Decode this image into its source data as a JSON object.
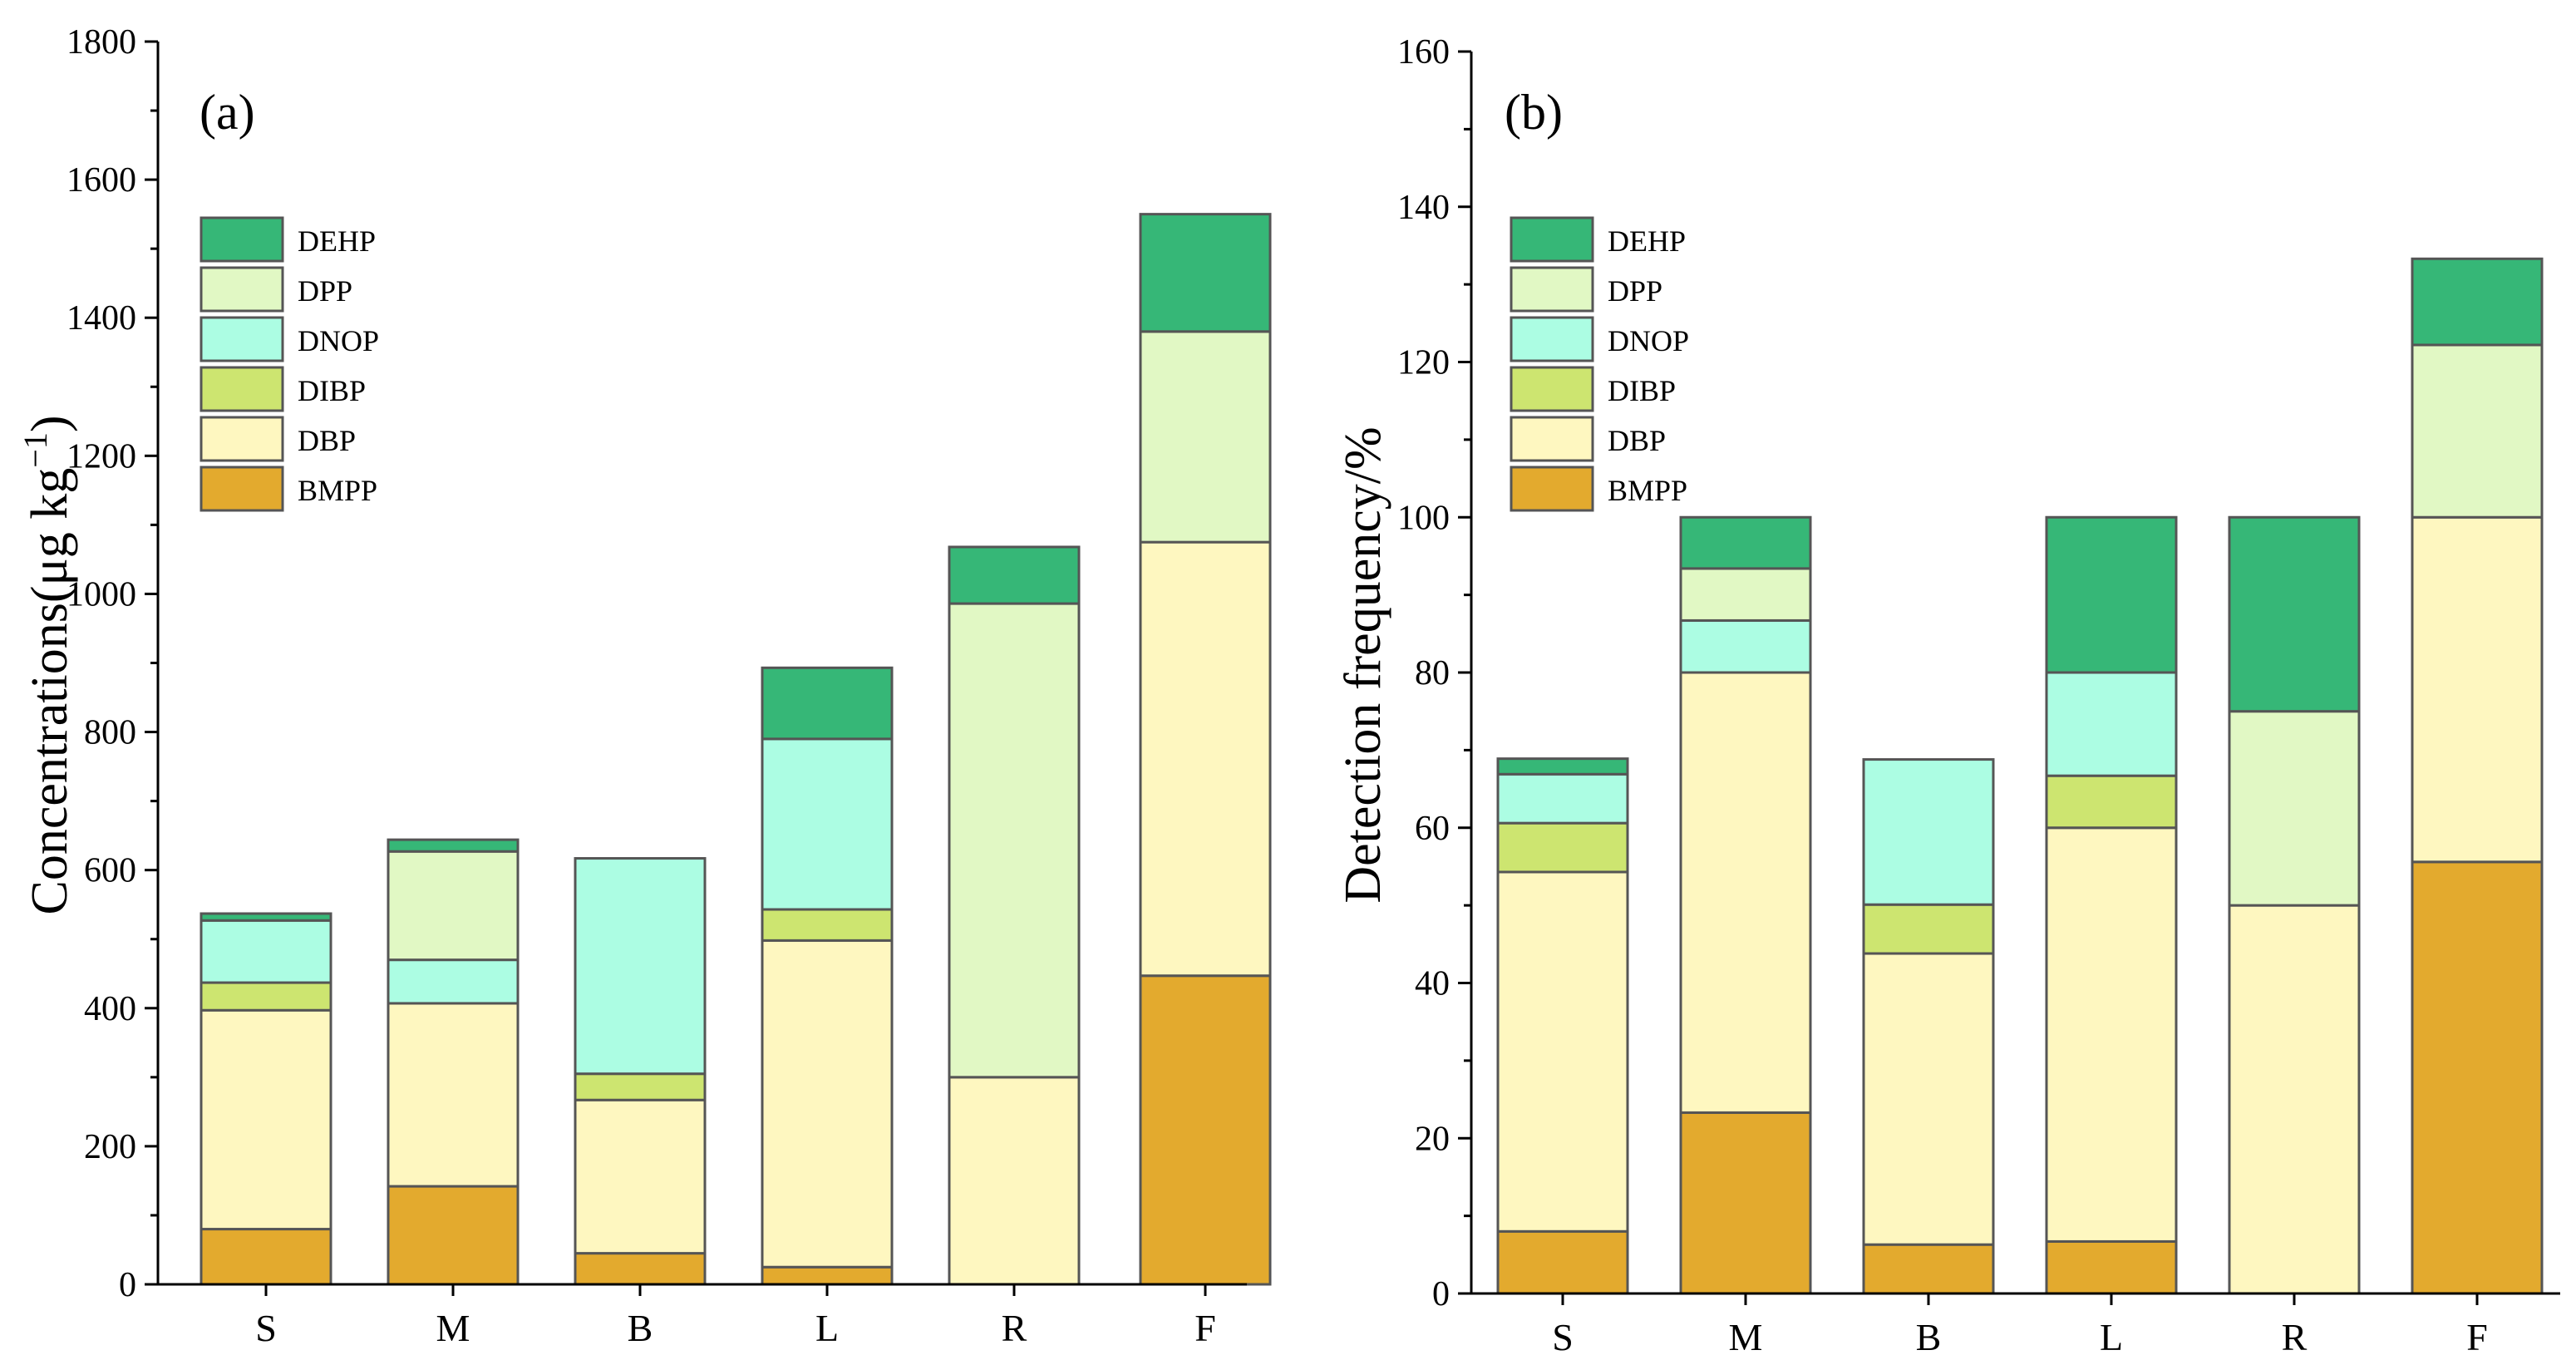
{
  "chart_data": [
    {
      "type": "bar",
      "stacked": true,
      "panel_label": "(a)",
      "title": "",
      "xlabel": "",
      "ylabel_main": "Concentrations(μg kg",
      "ylabel_sup": "−1",
      "ylabel_end": ")",
      "ylim": [
        0,
        1800
      ],
      "yticks": [
        0,
        200,
        400,
        600,
        800,
        1000,
        1200,
        1400,
        1600,
        1800
      ],
      "categories": [
        "S",
        "M",
        "B",
        "L",
        "R",
        "F"
      ],
      "legend_position": "upper-left",
      "series": [
        {
          "name": "BMPP",
          "color": "#E3AA2E",
          "values": [
            80,
            142,
            45,
            25,
            0,
            447
          ]
        },
        {
          "name": "DBP",
          "color": "#FEF7C0",
          "values": [
            317,
            265,
            222,
            473,
            300,
            628
          ]
        },
        {
          "name": "DIBP",
          "color": "#CDE570",
          "values": [
            40,
            0,
            38,
            45,
            0,
            0
          ]
        },
        {
          "name": "DNOP",
          "color": "#ACFDE3",
          "values": [
            90,
            63,
            312,
            247,
            0,
            0
          ]
        },
        {
          "name": "DPP",
          "color": "#E1F8C4",
          "values": [
            0,
            157,
            0,
            0,
            686,
            305
          ]
        },
        {
          "name": "DEHP",
          "color": "#36B777",
          "values": [
            10,
            17,
            0,
            103,
            82,
            170
          ]
        }
      ]
    },
    {
      "type": "bar",
      "stacked": true,
      "panel_label": "(b)",
      "title": "",
      "xlabel": "",
      "ylabel_main": "Detection frequency/%",
      "ylabel_sup": "",
      "ylabel_end": "",
      "ylim": [
        0,
        160
      ],
      "yticks": [
        0,
        20,
        40,
        60,
        80,
        100,
        120,
        140,
        160
      ],
      "categories": [
        "S",
        "M",
        "B",
        "L",
        "R",
        "F"
      ],
      "legend_position": "upper-left",
      "series": [
        {
          "name": "BMPP",
          "color": "#E3AA2E",
          "values": [
            8,
            23.3,
            6.3,
            6.7,
            0,
            55.6
          ]
        },
        {
          "name": "DBP",
          "color": "#FEF7C0",
          "values": [
            46.3,
            56.7,
            37.5,
            53.3,
            50,
            44.4
          ]
        },
        {
          "name": "DIBP",
          "color": "#CDE570",
          "values": [
            6.3,
            0,
            6.3,
            6.7,
            0,
            0
          ]
        },
        {
          "name": "DNOP",
          "color": "#ACFDE3",
          "values": [
            6.3,
            6.7,
            18.7,
            13.3,
            0,
            0
          ]
        },
        {
          "name": "DPP",
          "color": "#E1F8C4",
          "values": [
            0,
            6.7,
            0,
            0,
            25,
            22.2
          ]
        },
        {
          "name": "DEHP",
          "color": "#36B777",
          "values": [
            2,
            6.6,
            0,
            20,
            25,
            11.1
          ]
        }
      ]
    }
  ]
}
